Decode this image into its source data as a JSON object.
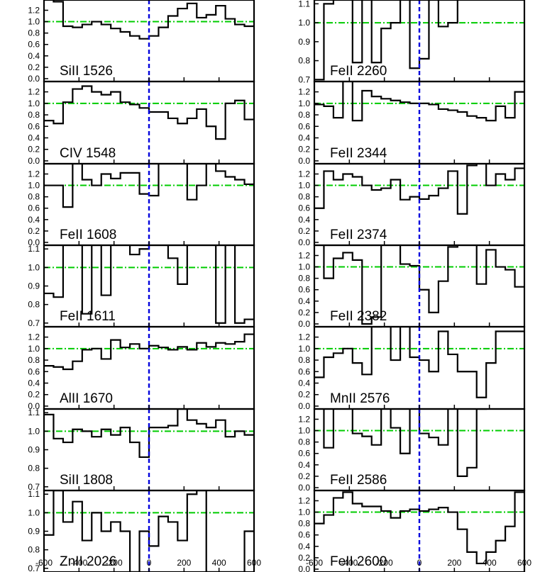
{
  "chart_data": {
    "type": "line",
    "subtype": "step",
    "xlim": [
      -600,
      600
    ],
    "x_ticks": [
      -600,
      -400,
      -200,
      0,
      200,
      400,
      600
    ],
    "x_tick_labels": [
      "-600",
      "-400",
      "-200",
      "0",
      "200",
      "400",
      "600"
    ],
    "reference_lines": {
      "x_zero_color": "#0000dd",
      "y_one_color": "#00cc00"
    },
    "step_color": "#000000",
    "panels": [
      {
        "label": "SiII 1526",
        "column": 0,
        "row": 0,
        "ylim": [
          -0.05,
          1.38
        ],
        "y_ticks": [
          0.0,
          0.2,
          0.4,
          0.6,
          0.8,
          1.0,
          1.2
        ],
        "y_tick_labels": [
          "0.0",
          "0.2",
          "0.4",
          "0.6",
          "0.8",
          "1.0",
          "1.2"
        ],
        "values": [
          1.55,
          1.35,
          0.92,
          0.9,
          0.95,
          1.0,
          0.95,
          0.88,
          0.82,
          0.75,
          0.7,
          0.75,
          0.9,
          1.1,
          1.23,
          1.32,
          1.07,
          1.12,
          1.28,
          1.05,
          0.95,
          0.92
        ]
      },
      {
        "label": "CIV 1548",
        "column": 0,
        "row": 1,
        "ylim": [
          -0.05,
          1.38
        ],
        "y_ticks": [
          0.0,
          0.2,
          0.4,
          0.6,
          0.8,
          1.0,
          1.2
        ],
        "y_tick_labels": [
          "0.0",
          "0.2",
          "0.4",
          "0.6",
          "0.8",
          "1.0",
          "1.2"
        ],
        "values": [
          0.7,
          0.65,
          1.02,
          1.25,
          1.3,
          1.2,
          1.15,
          1.2,
          1.02,
          0.98,
          0.92,
          0.85,
          0.85,
          0.74,
          0.65,
          0.74,
          0.9,
          0.6,
          0.38,
          1.0,
          1.05,
          0.72
        ]
      },
      {
        "label": "FeII 1608",
        "column": 0,
        "row": 2,
        "ylim": [
          -0.05,
          1.38
        ],
        "y_ticks": [
          0.0,
          0.2,
          0.4,
          0.6,
          0.8,
          1.0,
          1.2
        ],
        "y_tick_labels": [
          "0.0",
          "0.2",
          "0.4",
          "0.6",
          "0.8",
          "1.0",
          "1.2"
        ],
        "values": [
          1.0,
          1.0,
          0.62,
          1.45,
          1.1,
          1.0,
          1.2,
          1.12,
          1.22,
          1.22,
          0.85,
          0.82,
          1.4,
          1.4,
          1.4,
          0.75,
          1.0,
          1.4,
          1.25,
          1.15,
          1.1,
          1.02
        ]
      },
      {
        "label": "FeII 1611",
        "column": 0,
        "row": 3,
        "ylim": [
          0.68,
          1.12
        ],
        "y_ticks": [
          0.7,
          0.8,
          0.9,
          1.0,
          1.1
        ],
        "y_tick_labels": [
          "0.7",
          "0.8",
          "0.9",
          "1.0",
          "1.1"
        ],
        "values": [
          0.86,
          0.84,
          1.14,
          1.14,
          0.75,
          1.14,
          0.85,
          1.14,
          1.14,
          1.07,
          1.1,
          1.14,
          1.14,
          1.05,
          0.91,
          1.14,
          1.14,
          1.14,
          0.7,
          1.14,
          0.7,
          0.72
        ]
      },
      {
        "label": "AlII 1670",
        "column": 0,
        "row": 4,
        "ylim": [
          -0.05,
          1.38
        ],
        "y_ticks": [
          0.0,
          0.2,
          0.4,
          0.6,
          0.8,
          1.0,
          1.2
        ],
        "y_tick_labels": [
          "0.0",
          "0.2",
          "0.4",
          "0.6",
          "0.8",
          "1.0",
          "1.2"
        ],
        "values": [
          0.7,
          0.68,
          0.64,
          0.78,
          0.98,
          1.0,
          0.82,
          1.15,
          1.02,
          1.08,
          1.0,
          1.05,
          1.02,
          0.98,
          1.03,
          0.98,
          1.1,
          1.03,
          1.1,
          1.08,
          1.12,
          1.25
        ]
      },
      {
        "label": "SiII 1808",
        "column": 0,
        "row": 5,
        "ylim": [
          0.68,
          1.12
        ],
        "y_ticks": [
          0.7,
          0.8,
          0.9,
          1.0,
          1.1
        ],
        "y_tick_labels": [
          "0.7",
          "0.8",
          "0.9",
          "1.0",
          "1.1"
        ],
        "values": [
          1.09,
          0.96,
          0.94,
          1.01,
          1.0,
          0.97,
          1.01,
          0.98,
          1.02,
          0.94,
          0.86,
          1.02,
          1.02,
          1.03,
          1.12,
          1.06,
          1.04,
          1.02,
          1.06,
          0.97,
          1.0,
          0.98
        ]
      },
      {
        "label": "ZnII 2026",
        "column": 0,
        "row": 6,
        "ylim": [
          0.68,
          1.12
        ],
        "y_ticks": [
          0.7,
          0.8,
          0.9,
          1.0,
          1.1
        ],
        "y_tick_labels": [
          "0.7",
          "0.8",
          "0.9",
          "1.0",
          "1.1"
        ],
        "values": [
          0.88,
          1.12,
          0.95,
          1.06,
          0.85,
          1.0,
          0.9,
          0.95,
          0.9,
          0.68,
          0.9,
          0.82,
          0.98,
          0.95,
          0.85,
          1.1,
          1.12,
          0.68,
          0.68,
          0.68,
          0.68,
          0.9
        ]
      },
      {
        "label": "FeII 2260",
        "column": 1,
        "row": 0,
        "ylim": [
          0.69,
          1.12
        ],
        "y_ticks": [
          0.7,
          0.8,
          0.9,
          1.0,
          1.1
        ],
        "y_tick_labels": [
          "0.7",
          "0.8",
          "0.9",
          "1.0",
          "1.1"
        ],
        "values": [
          0.7,
          1.1,
          1.13,
          1.13,
          0.79,
          1.13,
          0.79,
          0.97,
          1.0,
          1.13,
          0.76,
          0.81,
          1.13,
          0.98,
          1.0,
          1.13,
          1.13,
          1.13,
          1.13,
          1.13,
          1.13,
          1.13
        ]
      },
      {
        "label": "FeII 2344",
        "column": 1,
        "row": 1,
        "ylim": [
          -0.05,
          1.38
        ],
        "y_ticks": [
          0.0,
          0.2,
          0.4,
          0.6,
          0.8,
          1.0,
          1.2
        ],
        "y_tick_labels": [
          "0.0",
          "0.2",
          "0.4",
          "0.6",
          "0.8",
          "1.0",
          "1.2"
        ],
        "values": [
          0.98,
          0.95,
          0.75,
          1.5,
          0.7,
          1.22,
          1.12,
          1.08,
          1.05,
          1.02,
          1.0,
          1.0,
          0.98,
          0.9,
          0.88,
          0.85,
          0.78,
          0.75,
          0.7,
          0.95,
          0.75,
          1.2
        ]
      },
      {
        "label": "FeII 2374",
        "column": 1,
        "row": 2,
        "ylim": [
          -0.05,
          1.38
        ],
        "y_ticks": [
          0.0,
          0.2,
          0.4,
          0.6,
          0.8,
          1.0,
          1.2
        ],
        "y_tick_labels": [
          "0.0",
          "0.2",
          "0.4",
          "0.6",
          "0.8",
          "1.0",
          "1.2"
        ],
        "values": [
          0.6,
          1.25,
          1.1,
          1.2,
          1.15,
          1.0,
          0.92,
          0.95,
          1.1,
          0.75,
          0.8,
          0.76,
          0.82,
          0.95,
          1.25,
          0.5,
          1.35,
          1.4,
          1.0,
          1.2,
          1.1,
          1.3
        ]
      },
      {
        "label": "FeII 2382",
        "column": 1,
        "row": 3,
        "ylim": [
          -0.05,
          1.38
        ],
        "y_ticks": [
          0.0,
          0.2,
          0.4,
          0.6,
          0.8,
          1.0,
          1.2
        ],
        "y_tick_labels": [
          "0.0",
          "0.2",
          "0.4",
          "0.6",
          "0.8",
          "1.0",
          "1.2"
        ],
        "values": [
          1.4,
          0.8,
          1.15,
          1.25,
          1.12,
          0.0,
          0.12,
          1.45,
          1.4,
          1.05,
          1.02,
          0.6,
          0.2,
          0.75,
          1.35,
          1.4,
          1.4,
          0.7,
          1.3,
          1.0,
          0.95,
          0.65
        ]
      },
      {
        "label": "MnII 2576",
        "column": 1,
        "row": 4,
        "ylim": [
          -0.05,
          1.38
        ],
        "y_ticks": [
          0.0,
          0.2,
          0.4,
          0.6,
          0.8,
          1.0,
          1.2
        ],
        "y_tick_labels": [
          "0.0",
          "0.2",
          "0.4",
          "0.6",
          "0.8",
          "1.0",
          "1.2"
        ],
        "values": [
          0.5,
          0.85,
          0.92,
          1.0,
          0.75,
          0.55,
          1.38,
          1.42,
          0.8,
          1.4,
          0.85,
          0.8,
          0.6,
          1.3,
          0.9,
          0.6,
          0.6,
          0.15,
          0.75,
          1.3,
          1.3,
          1.3
        ]
      },
      {
        "label": "FeII 2586",
        "column": 1,
        "row": 5,
        "ylim": [
          -0.05,
          1.38
        ],
        "y_ticks": [
          0.0,
          0.2,
          0.4,
          0.6,
          0.8,
          1.0,
          1.2
        ],
        "y_tick_labels": [
          "0.0",
          "0.2",
          "0.4",
          "0.6",
          "0.8",
          "1.0",
          "1.2"
        ],
        "values": [
          1.5,
          0.7,
          1.45,
          1.45,
          0.95,
          0.9,
          0.75,
          1.4,
          1.05,
          0.6,
          1.5,
          0.95,
          0.88,
          0.75,
          1.4,
          0.2,
          0.35,
          1.38,
          1.4,
          1.4,
          1.4,
          1.4
        ]
      },
      {
        "label": "FeII 2600",
        "column": 1,
        "row": 6,
        "ylim": [
          -0.05,
          1.38
        ],
        "y_ticks": [
          0.0,
          0.2,
          0.4,
          0.6,
          0.8,
          1.0,
          1.2
        ],
        "y_tick_labels": [
          "0.0",
          "0.2",
          "0.4",
          "0.6",
          "0.8",
          "1.0",
          "1.2"
        ],
        "values": [
          0.8,
          0.95,
          1.25,
          1.35,
          1.15,
          1.1,
          1.1,
          1.02,
          0.9,
          1.02,
          1.05,
          1.02,
          1.05,
          1.08,
          1.0,
          0.7,
          0.3,
          0.1,
          0.3,
          0.5,
          0.75,
          1.35
        ]
      }
    ]
  }
}
